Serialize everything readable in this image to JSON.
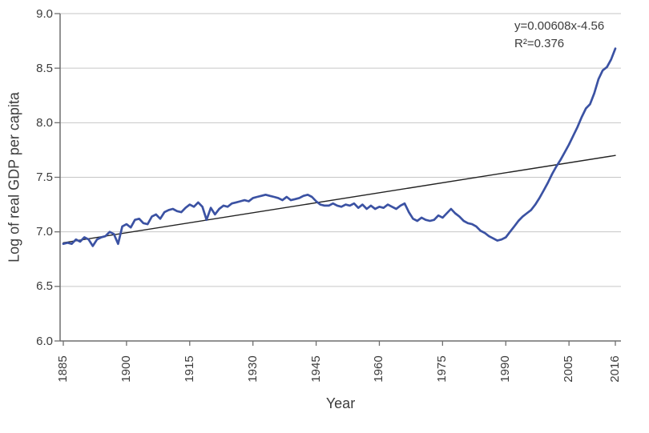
{
  "chart_data": {
    "type": "line",
    "title": "",
    "xlabel": "Year",
    "ylabel": "Log of real GDP per capita",
    "xlim": [
      1885,
      2016
    ],
    "ylim": [
      6.0,
      9.0
    ],
    "x_tick_labels": [
      "1885",
      "1900",
      "1915",
      "1930",
      "1945",
      "1960",
      "1975",
      "1990",
      "2005",
      "2016"
    ],
    "y_tick_labels": [
      "6.0",
      "6.5",
      "7.0",
      "7.5",
      "8.0",
      "8.5",
      "9.0"
    ],
    "grid": "horizontal gridlines at 6.5, 7.0, 7.5, 8.0, 8.5, 9.0; no vertical gridlines",
    "legend_position": "none",
    "annotation": {
      "trend_equation": "y=0.00608x-4.56",
      "r_squared": "R²=0.376"
    },
    "colors": {
      "series": "#3b52a3",
      "trend": "#222222",
      "grid": "#c6c6c6",
      "axis": "#6e6e6e",
      "text": "#3c3c3c"
    },
    "series": [
      {
        "name": "Log of real GDP per capita",
        "style": "data-line",
        "color_key": "series",
        "x_start": 1885,
        "x_step": 1,
        "values": [
          6.89,
          6.9,
          6.89,
          6.93,
          6.91,
          6.95,
          6.93,
          6.87,
          6.93,
          6.95,
          6.96,
          7.0,
          6.98,
          6.89,
          7.05,
          7.07,
          7.04,
          7.11,
          7.12,
          7.08,
          7.07,
          7.14,
          7.16,
          7.12,
          7.18,
          7.2,
          7.21,
          7.19,
          7.18,
          7.22,
          7.25,
          7.23,
          7.27,
          7.23,
          7.11,
          7.22,
          7.16,
          7.21,
          7.24,
          7.23,
          7.26,
          7.27,
          7.28,
          7.29,
          7.28,
          7.31,
          7.32,
          7.33,
          7.34,
          7.33,
          7.32,
          7.31,
          7.29,
          7.32,
          7.29,
          7.3,
          7.31,
          7.33,
          7.34,
          7.32,
          7.28,
          7.25,
          7.24,
          7.24,
          7.26,
          7.24,
          7.23,
          7.25,
          7.24,
          7.26,
          7.22,
          7.25,
          7.21,
          7.24,
          7.21,
          7.23,
          7.22,
          7.25,
          7.23,
          7.21,
          7.24,
          7.26,
          7.18,
          7.12,
          7.1,
          7.13,
          7.11,
          7.1,
          7.11,
          7.15,
          7.13,
          7.17,
          7.21,
          7.17,
          7.14,
          7.1,
          7.08,
          7.07,
          7.05,
          7.01,
          6.99,
          6.96,
          6.94,
          6.92,
          6.93,
          6.95,
          7.0,
          7.05,
          7.1,
          7.14,
          7.17,
          7.2,
          7.25,
          7.31,
          7.38,
          7.45,
          7.53,
          7.6,
          7.66,
          7.73,
          7.8,
          7.88,
          7.96,
          8.05,
          8.13,
          8.17,
          8.27,
          8.4,
          8.48,
          8.51,
          8.58,
          8.68
        ]
      },
      {
        "name": "Linear trend",
        "style": "trend-line",
        "color_key": "trend",
        "x": [
          1885,
          2016
        ],
        "values": [
          6.9,
          7.7
        ]
      }
    ]
  }
}
